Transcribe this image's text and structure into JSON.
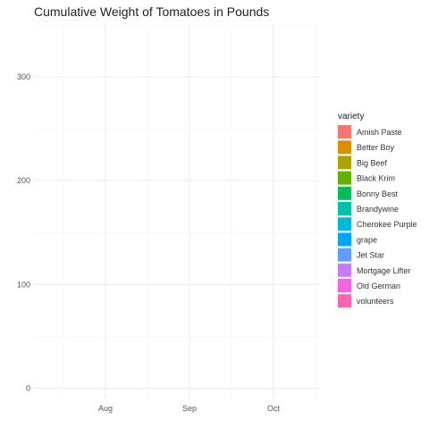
{
  "chart_data": {
    "type": "area",
    "title": "Cumulative Weight of Tomatoes in Pounds",
    "xlabel": "",
    "ylabel": "",
    "x_ticks": [
      "Aug",
      "Sep",
      "Oct"
    ],
    "y_ticks": [
      0,
      100,
      200,
      300
    ],
    "ylim": [
      -10,
      350
    ],
    "grid": true,
    "legend_title": "variety",
    "legend_position": "right",
    "series": [
      {
        "name": "Amish Paste",
        "color": "#F8766D",
        "values": []
      },
      {
        "name": "Better Boy",
        "color": "#DB8E00",
        "values": []
      },
      {
        "name": "Big Beef",
        "color": "#AEA200",
        "values": []
      },
      {
        "name": "Black Krim",
        "color": "#64B200",
        "values": []
      },
      {
        "name": "Bonny Best",
        "color": "#00BD5C",
        "values": []
      },
      {
        "name": "Brandywine",
        "color": "#00C1A7",
        "values": []
      },
      {
        "name": "Cherokee Purple",
        "color": "#00BADE",
        "values": []
      },
      {
        "name": "grape",
        "color": "#00A6FF",
        "values": []
      },
      {
        "name": "Jet Star",
        "color": "#619CFF",
        "values": []
      },
      {
        "name": "Mortgage Lifter",
        "color": "#C77CFF",
        "values": []
      },
      {
        "name": "Old German",
        "color": "#F564E3",
        "values": []
      },
      {
        "name": "volunteers",
        "color": "#FF64B0",
        "values": []
      }
    ]
  }
}
